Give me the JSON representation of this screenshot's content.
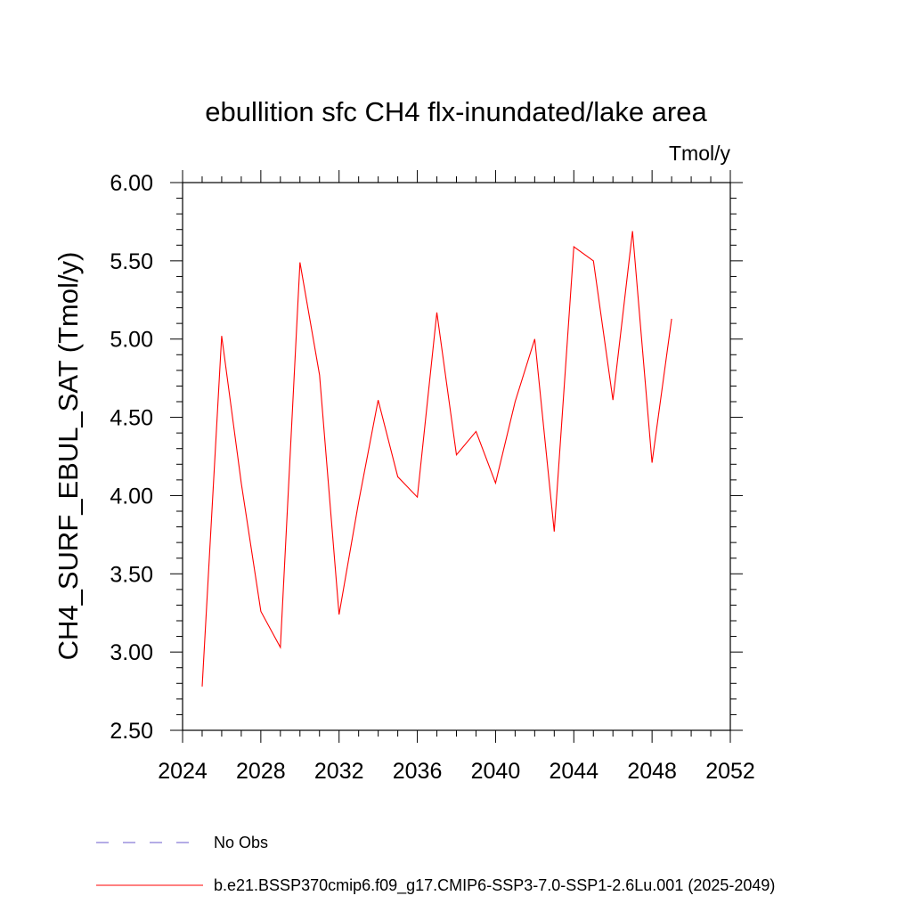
{
  "chart_data": {
    "type": "line",
    "title": "ebullition sfc CH4 flx-inundated/lake area",
    "units_label": "Tmol/y",
    "xlabel": "",
    "ylabel": "CH4_SURF_EBUL_SAT  (Tmol/y)",
    "xlim": [
      2024,
      2052
    ],
    "ylim": [
      2.5,
      6.0
    ],
    "x_ticks": [
      "2024",
      "2028",
      "2032",
      "2036",
      "2040",
      "2044",
      "2048",
      "2052"
    ],
    "x_tick_values": [
      2024,
      2028,
      2032,
      2036,
      2040,
      2044,
      2048,
      2052
    ],
    "y_ticks": [
      "2.50",
      "3.00",
      "3.50",
      "4.00",
      "4.50",
      "5.00",
      "5.50",
      "6.00"
    ],
    "y_tick_values": [
      2.5,
      3.0,
      3.5,
      4.0,
      4.5,
      5.0,
      5.5,
      6.0
    ],
    "grid": false,
    "legend_position": "bottom",
    "legend": [
      {
        "label": "No Obs",
        "color": "#6a5acd",
        "dash": "dashed"
      },
      {
        "label": "b.e21.BSSP370cmip6.f09_g17.CMIP6-SSP3-7.0-SSP1-2.6Lu.001 (2025-2049)",
        "color": "#ff0000",
        "dash": "solid"
      }
    ],
    "series": [
      {
        "color": "#ff0000",
        "x": [
          2025,
          2026,
          2027,
          2028,
          2029,
          2030,
          2031,
          2032,
          2033,
          2034,
          2035,
          2036,
          2037,
          2038,
          2039,
          2040,
          2041,
          2042,
          2043,
          2044,
          2045,
          2046,
          2047,
          2048,
          2049
        ],
        "values": [
          2.78,
          5.02,
          4.08,
          3.26,
          3.03,
          5.49,
          4.77,
          3.24,
          3.96,
          4.61,
          4.12,
          3.99,
          5.17,
          4.26,
          4.41,
          4.08,
          4.6,
          5.0,
          3.77,
          5.59,
          5.5,
          4.61,
          5.69,
          4.21,
          5.13
        ]
      }
    ]
  }
}
